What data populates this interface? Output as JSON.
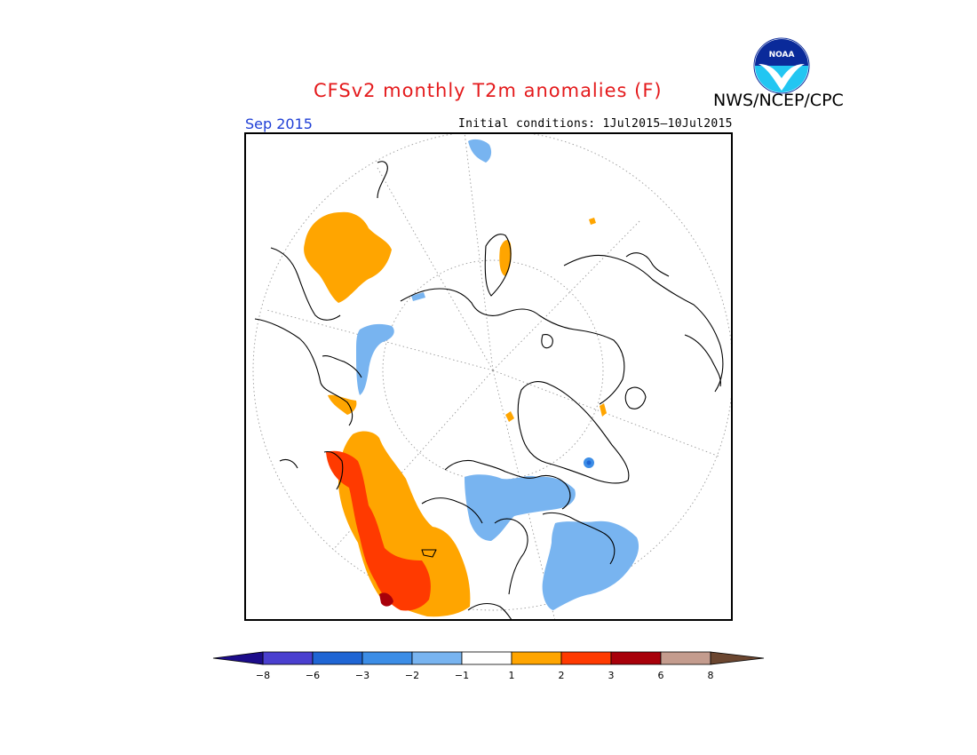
{
  "header": {
    "title": "CFSv2 monthly T2m anomalies (F)",
    "credit": "NWS/NCEP/CPC",
    "logo_text": "NOAA",
    "valid_month": "Sep 2015",
    "initial_conditions": "Initial conditions: 1Jul2015–10Jul2015"
  },
  "map": {
    "projection": "north-polar-stereographic",
    "graticule": "dotted",
    "background": "#ffffff"
  },
  "colors": {
    "neg_extreme": "#1c0c8a",
    "neg8": "#4a3fcf",
    "neg6": "#1f65d4",
    "neg3": "#3c8de6",
    "neg2": "#78b4f0",
    "near_zero": "#ffffff",
    "pos1": "#ffa500",
    "pos2": "#ff3a00",
    "pos3": "#a8000a",
    "pos6": "#c49c8e",
    "pos_extreme": "#6b4630",
    "title_red": "#e41a1c",
    "month_blue": "#1f3fd6"
  },
  "legend": {
    "ticks": [
      "−8",
      "−6",
      "−3",
      "−2",
      "−1",
      "1",
      "2",
      "3",
      "6",
      "8"
    ],
    "bins": [
      "#4a3fcf",
      "#1f65d4",
      "#3c8de6",
      "#78b4f0",
      "#ffffff",
      "#ffa500",
      "#ff3a00",
      "#a8000a",
      "#c49c8e"
    ],
    "left_arrow_color": "#1c0c8a",
    "right_arrow_color": "#6b4630"
  }
}
